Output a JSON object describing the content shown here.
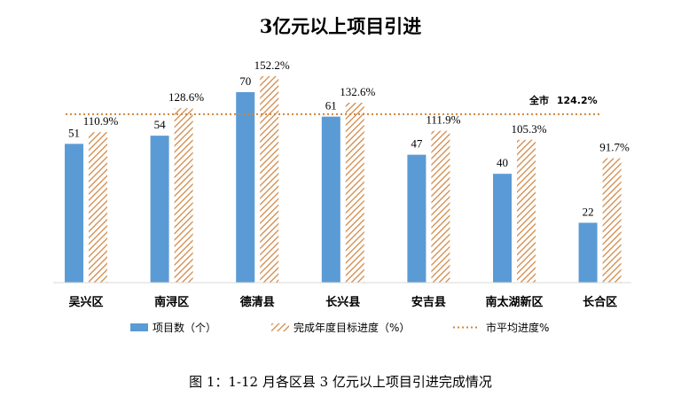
{
  "chart_data": {
    "type": "bar",
    "title": "3亿元以上项目引进",
    "categories": [
      "吴兴区",
      "南浔区",
      "德清县",
      "长兴县",
      "安吉县",
      "南太湖新区",
      "长合区"
    ],
    "series": [
      {
        "name": "项目数（个）",
        "values": [
          51,
          54,
          70,
          61,
          47,
          40,
          22
        ],
        "labels": [
          "51",
          "54",
          "70",
          "61",
          "47",
          "40",
          "22"
        ],
        "color": "#5b9bd5",
        "axis": "left"
      },
      {
        "name": "完成年度目标进度（%）",
        "values": [
          110.9,
          128.6,
          152.2,
          132.6,
          111.9,
          105.3,
          91.7
        ],
        "labels": [
          "110.9%",
          "128.6%",
          "152.2%",
          "132.6%",
          "111.9%",
          "105.3%",
          "91.7%"
        ],
        "color": "#ed7d31",
        "pattern": "diagonal-hatch",
        "axis": "right"
      }
    ],
    "reference_line": {
      "name": "市平均进度%",
      "value": 124.2,
      "label_prefix": "全市",
      "label_value": "124.2%",
      "style": "dotted",
      "color": "#ed7d31"
    },
    "ylim_left": [
      0,
      80
    ],
    "ylim_right": [
      0,
      160
    ],
    "grid": false,
    "legend_position": "bottom",
    "caption": "图 1：1-12 月各区县 3 亿元以上项目引进完成情况"
  }
}
